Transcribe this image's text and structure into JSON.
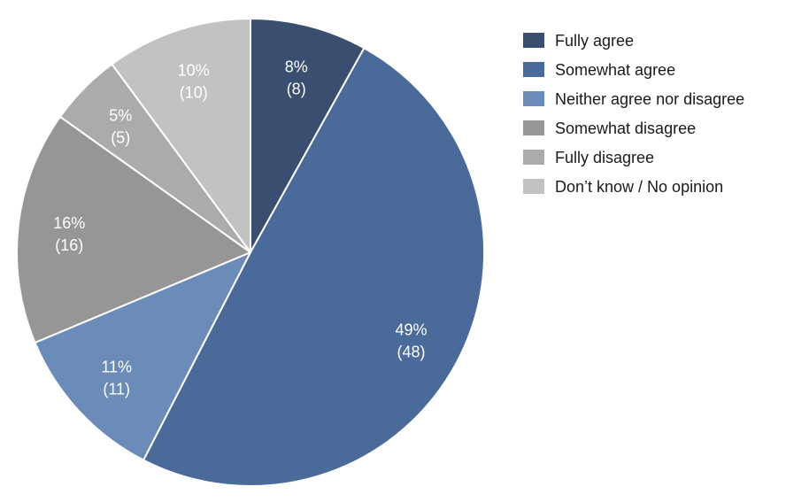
{
  "chart_data": {
    "type": "pie",
    "slices": [
      {
        "name": "Fully agree",
        "percent": 8,
        "count": 8,
        "percent_label": "8%",
        "count_label": "(8)",
        "color": "#3a4f70"
      },
      {
        "name": "Somewhat agree",
        "percent": 49,
        "count": 48,
        "percent_label": "49%",
        "count_label": "(48)",
        "color": "#4a6a9a"
      },
      {
        "name": "Neither agree nor disagree",
        "percent": 11,
        "count": 11,
        "percent_label": "11%",
        "count_label": "(11)",
        "color": "#6b8cb8"
      },
      {
        "name": "Somewhat disagree",
        "percent": 16,
        "count": 16,
        "percent_label": "16%",
        "count_label": "(16)",
        "color": "#969696"
      },
      {
        "name": "Fully disagree",
        "percent": 5,
        "count": 5,
        "percent_label": "5%",
        "count_label": "(5)",
        "color": "#ababab"
      },
      {
        "name": "Don’t know / No opinion",
        "percent": 10,
        "count": 10,
        "percent_label": "10%",
        "count_label": "(10)",
        "color": "#c2c2c2"
      }
    ],
    "legend_position": "top-right",
    "label_color": "#ffffff"
  }
}
